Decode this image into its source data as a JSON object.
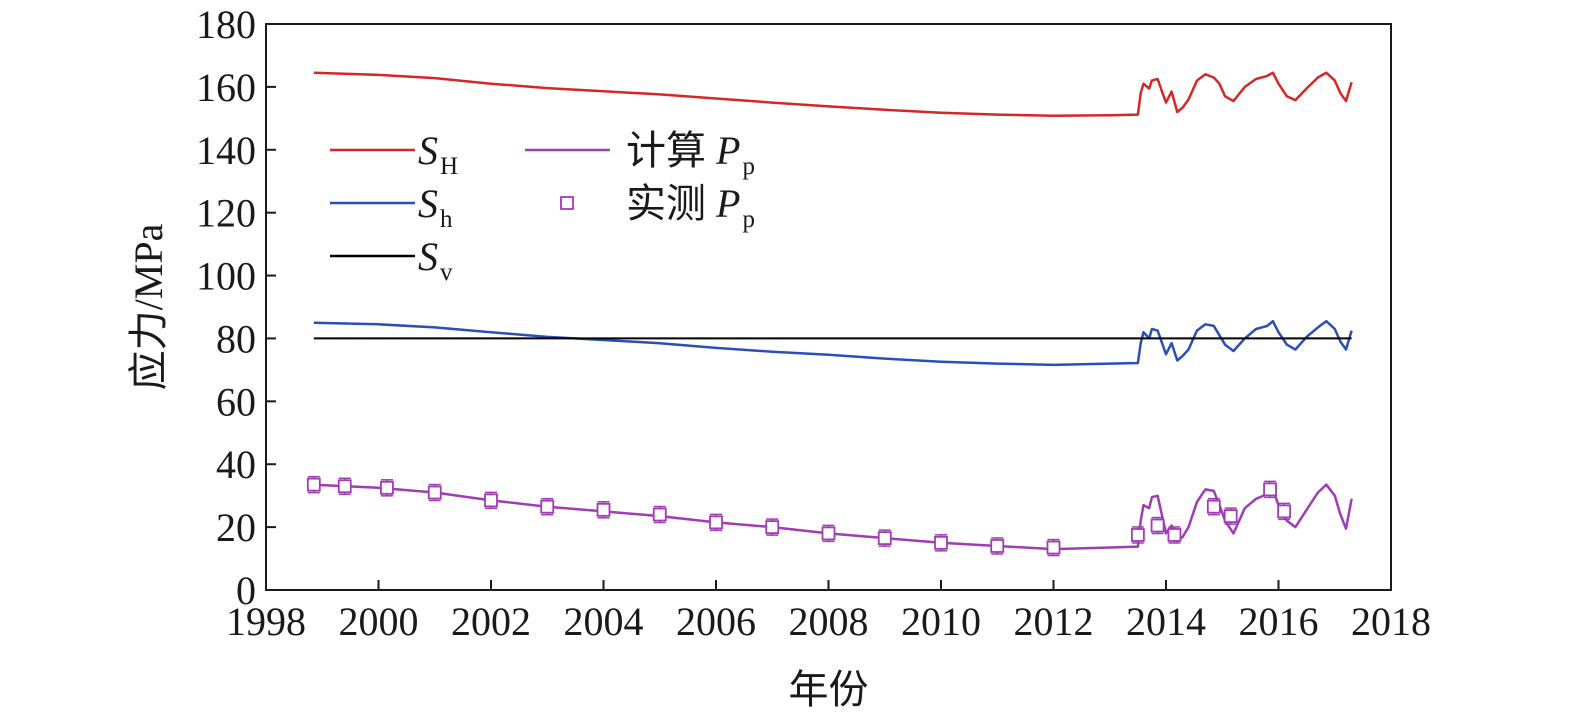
{
  "chart_data": {
    "type": "line",
    "xlabel": "年份",
    "ylabel": "应力/MPa",
    "xlim": [
      1998,
      2018
    ],
    "ylim": [
      0,
      180
    ],
    "xticks": [
      1998,
      2000,
      2002,
      2004,
      2006,
      2008,
      2010,
      2012,
      2014,
      2016,
      2018
    ],
    "yticks": [
      0,
      20,
      40,
      60,
      80,
      100,
      120,
      140,
      160,
      180
    ],
    "grid": false,
    "legend_position": "upper-left",
    "series": [
      {
        "key": "SH",
        "label_main": "S",
        "label_sub": "H",
        "color": "#d62728",
        "x": [
          1998.85,
          2000.0,
          2001.0,
          2002.0,
          2003.0,
          2004.0,
          2005.0,
          2006.0,
          2007.0,
          2008.0,
          2009.0,
          2010.0,
          2011.0,
          2012.0,
          2013.0,
          2013.5,
          2013.55,
          2013.6,
          2013.7,
          2013.75,
          2013.85,
          2013.95,
          2014.0,
          2014.1,
          2014.2,
          2014.3,
          2014.4,
          2014.55,
          2014.7,
          2014.85,
          2014.95,
          2015.05,
          2015.2,
          2015.4,
          2015.6,
          2015.8,
          2015.9,
          2016.0,
          2016.15,
          2016.3,
          2016.5,
          2016.7,
          2016.85,
          2017.0,
          2017.1,
          2017.2,
          2017.3
        ],
        "y": [
          164.5,
          163.8,
          162.8,
          161.0,
          159.6,
          158.6,
          157.6,
          156.3,
          155.0,
          153.8,
          152.7,
          151.8,
          151.2,
          150.8,
          151.0,
          151.2,
          158.0,
          161.0,
          159.5,
          162.0,
          162.5,
          157.5,
          155.0,
          158.5,
          152.0,
          153.5,
          156.0,
          162.0,
          164.0,
          163.0,
          161.0,
          157.0,
          155.5,
          160.0,
          162.5,
          163.5,
          164.5,
          161.0,
          157.0,
          155.8,
          159.5,
          163.0,
          164.5,
          162.0,
          158.0,
          155.5,
          161.5
        ]
      },
      {
        "key": "Sh",
        "label_main": "S",
        "label_sub": "h",
        "color": "#2b4fb3",
        "x": [
          1998.85,
          2000.0,
          2001.0,
          2002.0,
          2003.0,
          2004.0,
          2005.0,
          2006.0,
          2007.0,
          2008.0,
          2009.0,
          2010.0,
          2011.0,
          2012.0,
          2013.0,
          2013.5,
          2013.55,
          2013.6,
          2013.7,
          2013.75,
          2013.85,
          2013.95,
          2014.0,
          2014.1,
          2014.2,
          2014.3,
          2014.4,
          2014.55,
          2014.7,
          2014.85,
          2014.95,
          2015.05,
          2015.2,
          2015.4,
          2015.6,
          2015.8,
          2015.9,
          2016.0,
          2016.15,
          2016.3,
          2016.5,
          2016.7,
          2016.85,
          2017.0,
          2017.1,
          2017.2,
          2017.3
        ],
        "y": [
          85.0,
          84.5,
          83.5,
          82.0,
          80.5,
          79.5,
          78.5,
          77.0,
          75.8,
          74.8,
          73.6,
          72.6,
          72.0,
          71.6,
          72.0,
          72.2,
          78.5,
          82.0,
          80.0,
          83.0,
          82.5,
          77.5,
          75.0,
          78.5,
          73.0,
          74.5,
          76.5,
          82.5,
          84.5,
          84.0,
          81.0,
          78.0,
          76.0,
          80.0,
          83.0,
          84.0,
          85.5,
          82.0,
          78.0,
          76.5,
          80.5,
          83.5,
          85.5,
          83.0,
          79.0,
          76.5,
          82.5
        ]
      },
      {
        "key": "Sv",
        "label_main": "S",
        "label_sub": "v",
        "color": "#000000",
        "x": [
          1998.85,
          2017.3
        ],
        "y": [
          80.0,
          80.0
        ]
      },
      {
        "key": "Pp_calc",
        "label_main": "计算 P",
        "label_sub": "p",
        "color": "#a03cb4",
        "x": [
          1998.85,
          2000.0,
          2001.0,
          2002.0,
          2003.0,
          2004.0,
          2005.0,
          2006.0,
          2007.0,
          2008.0,
          2009.0,
          2010.0,
          2011.0,
          2012.0,
          2013.0,
          2013.5,
          2013.55,
          2013.6,
          2013.7,
          2013.75,
          2013.85,
          2013.95,
          2014.0,
          2014.1,
          2014.2,
          2014.3,
          2014.4,
          2014.55,
          2014.7,
          2014.85,
          2014.95,
          2015.05,
          2015.2,
          2015.4,
          2015.6,
          2015.8,
          2015.9,
          2016.0,
          2016.15,
          2016.3,
          2016.5,
          2016.7,
          2016.85,
          2017.0,
          2017.1,
          2017.2,
          2017.3
        ],
        "y": [
          33.5,
          32.5,
          31.0,
          28.5,
          26.5,
          25.0,
          23.5,
          21.5,
          20.0,
          18.0,
          16.5,
          15.0,
          14.0,
          13.0,
          13.5,
          13.8,
          22.0,
          27.0,
          26.0,
          29.5,
          30.0,
          22.0,
          18.0,
          20.5,
          15.5,
          17.0,
          20.0,
          28.0,
          32.0,
          31.5,
          27.0,
          22.0,
          18.0,
          26.0,
          29.0,
          30.5,
          32.0,
          27.0,
          22.0,
          20.0,
          25.5,
          31.0,
          33.5,
          30.0,
          24.0,
          19.5,
          29.0
        ]
      },
      {
        "key": "Pp_meas",
        "label_main": "实测 P",
        "label_sub": "p",
        "color": "#a03cb4",
        "x": [
          1998.85,
          1999.4,
          2000.15,
          2001.0,
          2002.0,
          2003.0,
          2004.0,
          2005.0,
          2006.0,
          2007.0,
          2008.0,
          2009.0,
          2010.0,
          2011.0,
          2012.0,
          2013.5,
          2013.85,
          2014.15,
          2014.85,
          2015.15,
          2015.85,
          2016.1
        ],
        "y": [
          33.5,
          33.0,
          32.5,
          31.0,
          28.5,
          26.5,
          25.5,
          24.0,
          21.5,
          20.0,
          18.0,
          16.5,
          15.0,
          14.0,
          13.5,
          17.5,
          20.5,
          17.5,
          26.5,
          23.5,
          32.0,
          25.0
        ]
      }
    ]
  }
}
